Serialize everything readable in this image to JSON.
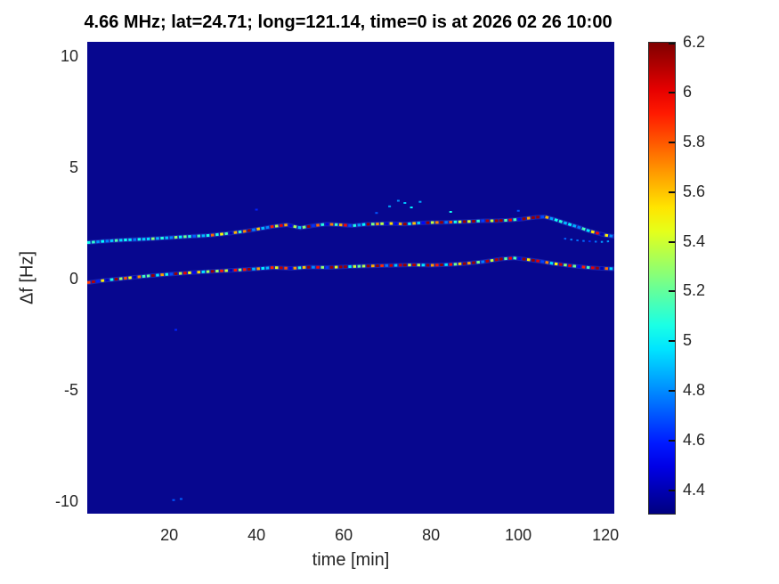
{
  "title": "4.66 MHz;  lat=24.71; long=121.14, time=0 is at 2026 02 26 10:00",
  "chart_data": {
    "type": "heatmap",
    "title": "4.66 MHz;  lat=24.71; long=121.14, time=0 is at 2026 02 26 10:00",
    "xlabel": "time [min]",
    "ylabel": "Δf [Hz]",
    "x_range": [
      1.2,
      122
    ],
    "y_range": [
      -10.56,
      10.64
    ],
    "x_ticks": [
      20,
      40,
      60,
      80,
      100,
      120
    ],
    "y_ticks": [
      10,
      5,
      0,
      -5,
      -10
    ],
    "grid": false,
    "colormap": "jet",
    "color_range": [
      4.3,
      6.2
    ],
    "plot_bg": "#07078f",
    "colorbar": {
      "tick_values": [
        6.2,
        6.0,
        5.8,
        5.6,
        5.4,
        5.2,
        5.0,
        4.8,
        4.6,
        4.4
      ],
      "tick_labels": [
        "6.2",
        "6",
        "5.8",
        "5.6",
        "5.4",
        "5.2",
        "5",
        "4.8",
        "4.6",
        "4.4"
      ]
    },
    "series": [
      {
        "name": "upper-doppler-trace",
        "style": {
          "dash_step": 1.05,
          "dash_len": 0.72,
          "width": 3,
          "jitter": 0.32,
          "glow": true
        },
        "points": [
          [
            1.2,
            1.62,
            4.95
          ],
          [
            5,
            1.68,
            5.0
          ],
          [
            10,
            1.74,
            4.95
          ],
          [
            15,
            1.78,
            5.0
          ],
          [
            20,
            1.84,
            5.05
          ],
          [
            25,
            1.9,
            5.05
          ],
          [
            29,
            1.94,
            5.15
          ],
          [
            33,
            2.02,
            5.25
          ],
          [
            37,
            2.12,
            5.35
          ],
          [
            41,
            2.25,
            5.45
          ],
          [
            44,
            2.35,
            5.5
          ],
          [
            47,
            2.42,
            5.35
          ],
          [
            50,
            2.28,
            5.15
          ],
          [
            53,
            2.38,
            5.45
          ],
          [
            56,
            2.45,
            5.35
          ],
          [
            59,
            2.42,
            5.25
          ],
          [
            62,
            2.38,
            5.4
          ],
          [
            65,
            2.44,
            5.5
          ],
          [
            68,
            2.46,
            5.25
          ],
          [
            71,
            2.48,
            5.35
          ],
          [
            74,
            2.45,
            5.45
          ],
          [
            77,
            2.5,
            5.3
          ],
          [
            80,
            2.52,
            5.55
          ],
          [
            83,
            2.53,
            5.65
          ],
          [
            86,
            2.55,
            5.7
          ],
          [
            89,
            2.57,
            5.6
          ],
          [
            92,
            2.6,
            5.75
          ],
          [
            95,
            2.6,
            5.8
          ],
          [
            98,
            2.63,
            5.7
          ],
          [
            101,
            2.68,
            5.8
          ],
          [
            104,
            2.76,
            5.85
          ],
          [
            106,
            2.78,
            5.6
          ],
          [
            108,
            2.68,
            5.1
          ],
          [
            110,
            2.55,
            4.95
          ],
          [
            112,
            2.42,
            4.9
          ],
          [
            114,
            2.3,
            4.95
          ],
          [
            116,
            2.16,
            5.1
          ],
          [
            118,
            2.05,
            5.3
          ],
          [
            120,
            1.95,
            5.35
          ],
          [
            122,
            1.9,
            5.2
          ]
        ]
      },
      {
        "name": "lower-doppler-trace",
        "style": {
          "dash_step": 1.05,
          "dash_len": 0.72,
          "width": 3,
          "jitter": 0.3,
          "glow": true
        },
        "points": [
          [
            1.2,
            -0.18,
            5.4
          ],
          [
            5,
            -0.08,
            5.45
          ],
          [
            10,
            0.02,
            5.4
          ],
          [
            15,
            0.12,
            5.45
          ],
          [
            20,
            0.2,
            5.5
          ],
          [
            25,
            0.27,
            5.45
          ],
          [
            30,
            0.33,
            5.5
          ],
          [
            35,
            0.38,
            5.55
          ],
          [
            40,
            0.44,
            5.5
          ],
          [
            44,
            0.5,
            5.55
          ],
          [
            48,
            0.46,
            5.5
          ],
          [
            52,
            0.52,
            5.6
          ],
          [
            56,
            0.5,
            5.6
          ],
          [
            60,
            0.53,
            5.7
          ],
          [
            64,
            0.56,
            5.8
          ],
          [
            68,
            0.58,
            5.75
          ],
          [
            72,
            0.6,
            5.85
          ],
          [
            76,
            0.62,
            5.8
          ],
          [
            80,
            0.6,
            5.85
          ],
          [
            84,
            0.63,
            5.8
          ],
          [
            88,
            0.68,
            5.85
          ],
          [
            92,
            0.76,
            5.8
          ],
          [
            96,
            0.88,
            5.7
          ],
          [
            99,
            0.93,
            5.72
          ],
          [
            102,
            0.86,
            5.68
          ],
          [
            105,
            0.78,
            5.6
          ],
          [
            108,
            0.68,
            5.55
          ],
          [
            112,
            0.58,
            5.5
          ],
          [
            116,
            0.5,
            5.48
          ],
          [
            119,
            0.46,
            5.52
          ],
          [
            122,
            0.44,
            5.6
          ]
        ]
      },
      {
        "name": "upper-trace-split-tail",
        "style": {
          "dash_step": 1.4,
          "dash_len": 0.5,
          "width": 2,
          "jitter": 0.05,
          "glow": false
        },
        "points": [
          [
            110.5,
            1.8,
            4.7
          ],
          [
            113,
            1.73,
            4.78
          ],
          [
            116,
            1.68,
            4.72
          ],
          [
            119,
            1.65,
            4.8
          ],
          [
            122,
            1.7,
            4.85
          ]
        ]
      }
    ],
    "specks": [
      [
        70.5,
        3.25,
        4.85
      ],
      [
        72.5,
        3.5,
        4.8
      ],
      [
        74,
        3.4,
        4.9
      ],
      [
        75.5,
        3.2,
        5.0
      ],
      [
        77.5,
        3.45,
        4.85
      ],
      [
        67.5,
        2.95,
        4.7
      ],
      [
        84.5,
        3.0,
        5.05
      ],
      [
        100,
        3.05,
        4.7
      ],
      [
        40,
        3.1,
        4.6
      ],
      [
        21.5,
        -2.3,
        4.6
      ],
      [
        21,
        -9.95,
        4.7
      ],
      [
        22.7,
        -9.9,
        4.72
      ]
    ]
  }
}
